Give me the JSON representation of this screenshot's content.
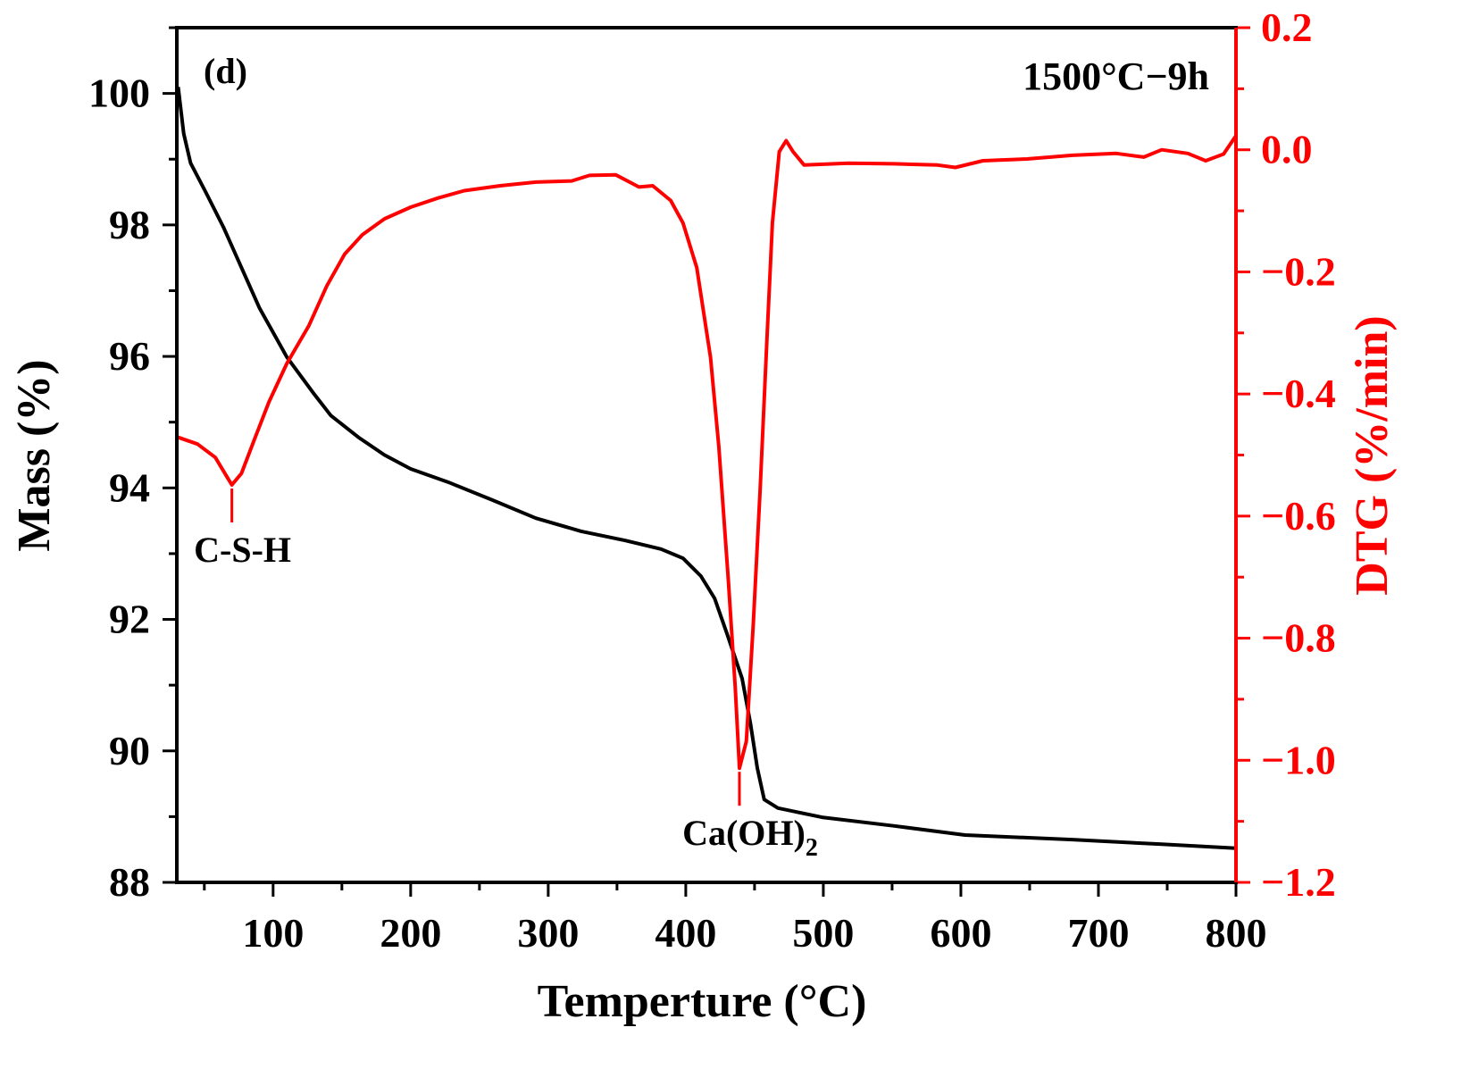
{
  "chart_data": {
    "type": "line",
    "panel_label": "(d)",
    "condition_label": "1500°C−9h",
    "xlabel": "Temperture (°C)",
    "ylabel_left": "Mass (%)",
    "ylabel_right": "DTG (%/min)",
    "xlim": [
      30,
      800
    ],
    "ylim_left": [
      88,
      101
    ],
    "ylim_right": [
      -1.2,
      0.2
    ],
    "xticks": [
      100,
      200,
      300,
      400,
      500,
      600,
      700,
      800
    ],
    "yticks_left": [
      88,
      90,
      92,
      94,
      96,
      98,
      100
    ],
    "yticks_right": [
      -1.2,
      -1.0,
      -0.8,
      -0.6,
      -0.4,
      -0.2,
      0.0,
      0.2
    ],
    "ytick_right_labels": [
      "−1.2",
      "−1.0",
      "−0.8",
      "−0.6",
      "−0.4",
      "−0.2",
      "0.0",
      "0.2"
    ],
    "grid": false,
    "colors": {
      "mass": "#000000",
      "dtg": "#ff0000"
    },
    "series": [
      {
        "axis": "left",
        "x": [
          31,
          35,
          40,
          51,
          64,
          77,
          90,
          110,
          129,
          142,
          162,
          181,
          200,
          227,
          259,
          291,
          324,
          356,
          382,
          398,
          411,
          421,
          430,
          441,
          447,
          452,
          457,
          467,
          499,
          551,
          603,
          681,
          746,
          800
        ],
        "y": [
          100.1,
          99.39,
          98.94,
          98.5,
          97.96,
          97.35,
          96.74,
          95.99,
          95.45,
          95.1,
          94.77,
          94.5,
          94.29,
          94.09,
          93.82,
          93.54,
          93.34,
          93.2,
          93.07,
          92.93,
          92.66,
          92.32,
          91.78,
          91.1,
          90.42,
          89.74,
          89.26,
          89.13,
          88.99,
          88.86,
          88.72,
          88.65,
          88.58,
          88.52
        ]
      },
      {
        "axis": "right",
        "x": [
          31,
          45,
          58,
          70,
          77,
          87,
          97,
          110,
          126,
          139,
          152,
          165,
          181,
          200,
          220,
          239,
          265,
          291,
          317,
          330,
          349,
          366,
          376,
          389,
          398,
          408,
          418,
          424,
          431,
          436,
          439,
          444,
          449,
          454,
          459,
          463,
          468,
          473,
          478,
          486,
          518,
          551,
          583,
          596,
          616,
          648,
          681,
          713,
          733,
          746,
          765,
          778,
          791,
          800
        ],
        "y": [
          -0.471,
          -0.482,
          -0.504,
          -0.549,
          -0.53,
          -0.471,
          -0.413,
          -0.35,
          -0.288,
          -0.223,
          -0.171,
          -0.139,
          -0.113,
          -0.094,
          -0.079,
          -0.067,
          -0.059,
          -0.053,
          -0.051,
          -0.042,
          -0.041,
          -0.061,
          -0.059,
          -0.083,
          -0.12,
          -0.193,
          -0.34,
          -0.486,
          -0.706,
          -0.881,
          -1.013,
          -0.969,
          -0.779,
          -0.559,
          -0.31,
          -0.12,
          -0.003,
          0.015,
          -0.003,
          -0.025,
          -0.022,
          -0.023,
          -0.025,
          -0.029,
          -0.018,
          -0.015,
          -0.009,
          -0.006,
          -0.012,
          0.0,
          -0.006,
          -0.018,
          -0.007,
          0.023
        ]
      }
    ],
    "annotations": [
      {
        "text": "C-S-H",
        "x": 70,
        "y_right": -0.549
      },
      {
        "text": "Ca(OH)",
        "subscript": "2",
        "x": 439,
        "y_right": -1.013
      }
    ]
  }
}
